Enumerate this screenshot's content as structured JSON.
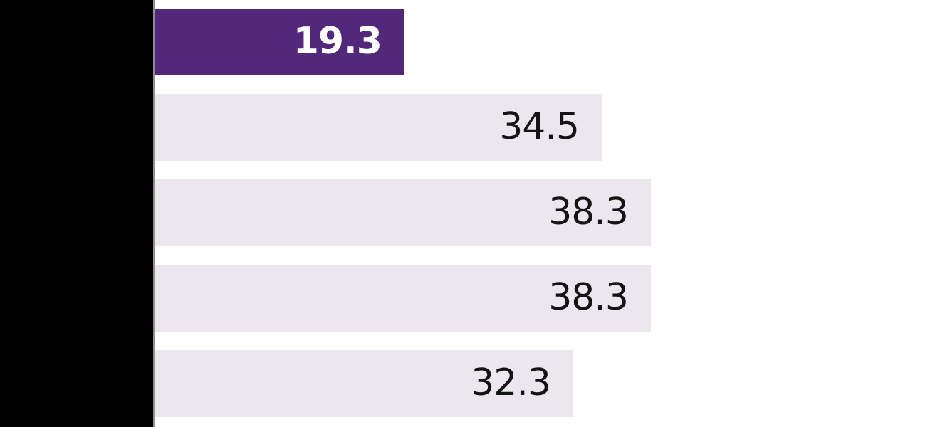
{
  "chart_data": {
    "type": "bar",
    "orientation": "horizontal",
    "title": "",
    "xlabel": "",
    "ylabel": "",
    "categories": [
      "",
      "",
      "",
      "",
      ""
    ],
    "category_labels_redacted": true,
    "values": [
      19.3,
      34.5,
      38.3,
      38.3,
      32.3
    ],
    "bar_labels": [
      "19.3",
      "34.5",
      "38.3",
      "38.3",
      "32.3"
    ],
    "highlighted_index": 0,
    "grid": false,
    "legend": false,
    "value_labels_position": "inside-end"
  },
  "colors": {
    "highlight_bar": "#53277a",
    "default_bar": "#ece7ee",
    "highlight_label": "#ffffff",
    "default_label": "#141414",
    "axis_spine": "#8f8f8f",
    "redaction_mask": "#000000",
    "background": "#ffffff"
  }
}
